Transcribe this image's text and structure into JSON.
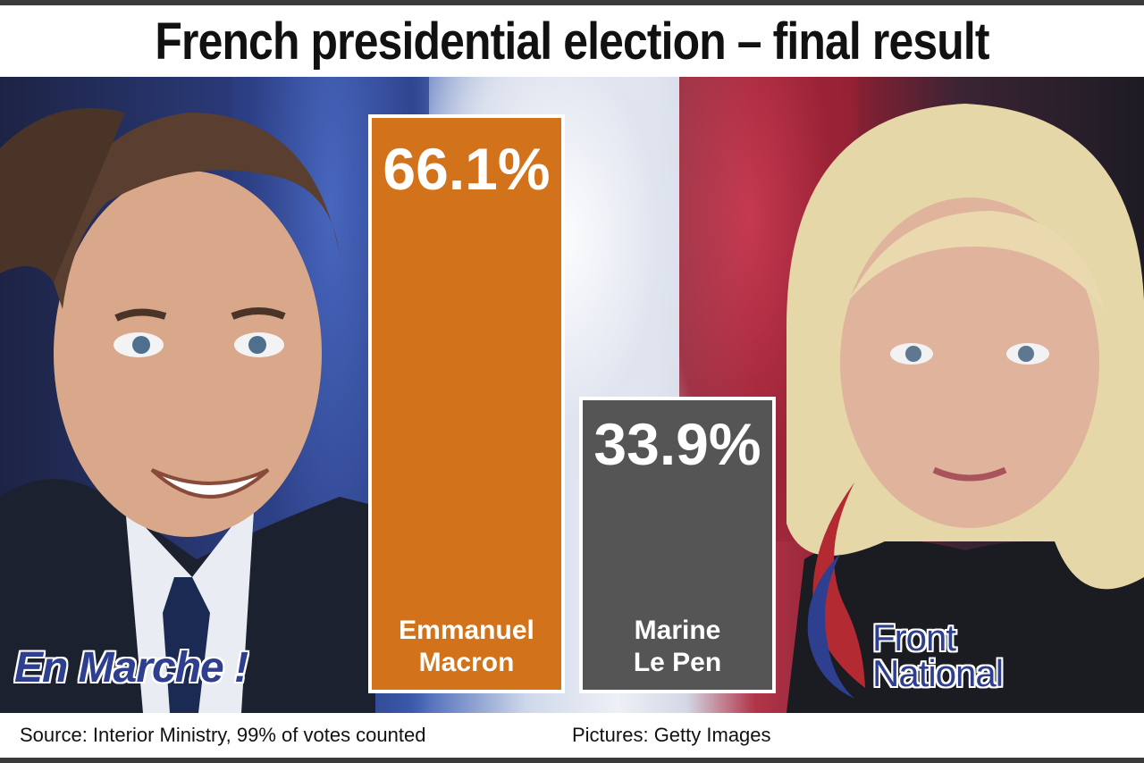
{
  "title": "French presidential election – final result",
  "source": "Source: Interior Ministry, 99% of votes counted",
  "pictures_credit": "Pictures: Getty Images",
  "logos": {
    "left": "En Marche !",
    "right": "Front\nNational"
  },
  "colors": {
    "macron_bar": "#d2731c",
    "le_pen_bar": "#555555",
    "logo_blue": "#2f3f8f",
    "logo_red": "#b32a32"
  },
  "chart_data": {
    "type": "bar",
    "categories": [
      "Emmanuel\nMacron",
      "Marine\nLe Pen"
    ],
    "values": [
      66.1,
      33.9
    ],
    "value_labels": [
      "66.1%",
      "33.9%"
    ],
    "ylim": [
      0,
      100
    ],
    "title": "French presidential election – final result",
    "xlabel": "",
    "ylabel": ""
  }
}
